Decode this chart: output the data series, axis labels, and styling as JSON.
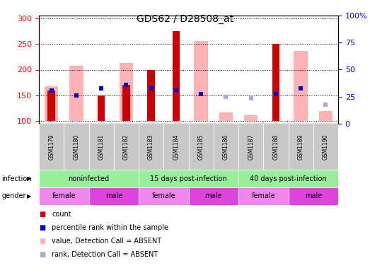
{
  "title": "GDS62 / D28508_at",
  "samples": [
    "GSM1179",
    "GSM1180",
    "GSM1181",
    "GSM1182",
    "GSM1183",
    "GSM1184",
    "GSM1185",
    "GSM1186",
    "GSM1187",
    "GSM1188",
    "GSM1189",
    "GSM1190"
  ],
  "count_values": [
    160,
    null,
    150,
    170,
    200,
    275,
    null,
    null,
    null,
    250,
    null,
    null
  ],
  "count_bottom": [
    100,
    null,
    100,
    100,
    100,
    100,
    null,
    null,
    null,
    100,
    null,
    null
  ],
  "pink_values": [
    168,
    207,
    null,
    213,
    null,
    null,
    255,
    117,
    112,
    null,
    237,
    120
  ],
  "pink_bottom": [
    100,
    100,
    null,
    100,
    null,
    null,
    100,
    100,
    100,
    null,
    100,
    100
  ],
  "blue_square_values": [
    160,
    150,
    163,
    171,
    163,
    160,
    152,
    null,
    null,
    152,
    163,
    null
  ],
  "blue_rank_values": [
    null,
    null,
    null,
    null,
    null,
    null,
    null,
    147,
    145,
    null,
    null,
    132
  ],
  "ylim_left": [
    95,
    305
  ],
  "ylim_right": [
    0,
    100
  ],
  "yticks_left": [
    100,
    150,
    200,
    250,
    300
  ],
  "yticks_right": [
    0,
    25,
    50,
    75,
    100
  ],
  "ytick_labels_right": [
    "0",
    "25",
    "50",
    "75",
    "100%"
  ],
  "bar_color_red": "#cc0000",
  "bar_color_pink": "#ffb3b3",
  "square_blue": "#0000cc",
  "square_light_blue": "#aaaadd",
  "infection_label": "infection",
  "gender_label": "gender",
  "inf_groups": [
    {
      "label": "noninfected",
      "start": 0,
      "end": 3
    },
    {
      "label": "15 days post-infection",
      "start": 4,
      "end": 7
    },
    {
      "label": "40 days post-infection",
      "start": 8,
      "end": 11
    }
  ],
  "gen_groups": [
    {
      "label": "female",
      "start": 0,
      "end": 1,
      "color": "#ee88ee"
    },
    {
      "label": "male",
      "start": 2,
      "end": 3,
      "color": "#dd44dd"
    },
    {
      "label": "female",
      "start": 4,
      "end": 5,
      "color": "#ee88ee"
    },
    {
      "label": "male",
      "start": 6,
      "end": 7,
      "color": "#dd44dd"
    },
    {
      "label": "female",
      "start": 8,
      "end": 9,
      "color": "#ee88ee"
    },
    {
      "label": "male",
      "start": 10,
      "end": 11,
      "color": "#dd44dd"
    }
  ],
  "legend_items": [
    {
      "label": "count",
      "color": "#cc0000",
      "kind": "square"
    },
    {
      "label": "percentile rank within the sample",
      "color": "#0000cc",
      "kind": "square"
    },
    {
      "label": "value, Detection Call = ABSENT",
      "color": "#ffb3b3",
      "kind": "square"
    },
    {
      "label": "rank, Detection Call = ABSENT",
      "color": "#aaaadd",
      "kind": "square"
    }
  ],
  "fig_width": 5.23,
  "fig_height": 3.96,
  "fig_dpi": 100
}
